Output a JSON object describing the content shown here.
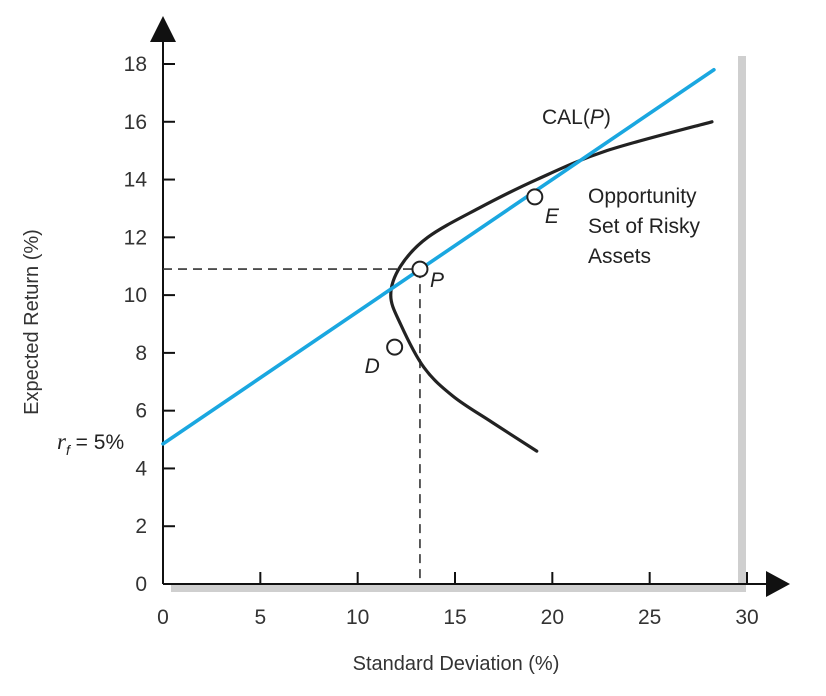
{
  "chart_data": {
    "type": "line",
    "title": "",
    "xlabel": "Standard Deviation (%)",
    "ylabel": "Expected Return (%)",
    "xlim": [
      0,
      30
    ],
    "ylim": [
      0,
      18
    ],
    "xticks": [
      "0",
      "5",
      "10",
      "15",
      "20",
      "25",
      "30"
    ],
    "yticks": [
      "0",
      "2",
      "4",
      "6",
      "8",
      "10",
      "12",
      "14",
      "16",
      "18"
    ],
    "grid": false,
    "series": [
      {
        "name": "CAL(P)",
        "color": "#1aa7e0",
        "x": [
          0,
          28.3
        ],
        "y": [
          4.85,
          17.8
        ]
      },
      {
        "name": "Opportunity Set of Risky Assets",
        "color": "#222222",
        "x": [
          19.2,
          16.9,
          14.9,
          13.4,
          12.2,
          11.7,
          12.2,
          13.6,
          16.2,
          19.2,
          22.8,
          28.2
        ],
        "y": [
          4.6,
          5.6,
          6.5,
          7.5,
          9.0,
          10.0,
          11.0,
          12.0,
          13.0,
          14.0,
          15.0,
          16.0
        ]
      }
    ],
    "points": [
      {
        "label": "P",
        "x": 13.2,
        "y": 10.9
      },
      {
        "label": "E",
        "x": 19.1,
        "y": 13.4
      },
      {
        "label": "D",
        "x": 11.9,
        "y": 8.2
      }
    ],
    "annotations": {
      "cal_label": "CAL(",
      "cal_label_italic": "P",
      "cal_label_close": ")",
      "opportunity_line1": "Opportunity",
      "opportunity_line2": "Set of Risky",
      "opportunity_line3": "Assets",
      "rf_symbol": "r",
      "rf_subscript": "f",
      "rf_value": " = 5%"
    },
    "colors": {
      "cal": "#1aa7e0",
      "curve": "#222222",
      "axes": "#111111",
      "shadow": "#cfcfcf"
    }
  }
}
